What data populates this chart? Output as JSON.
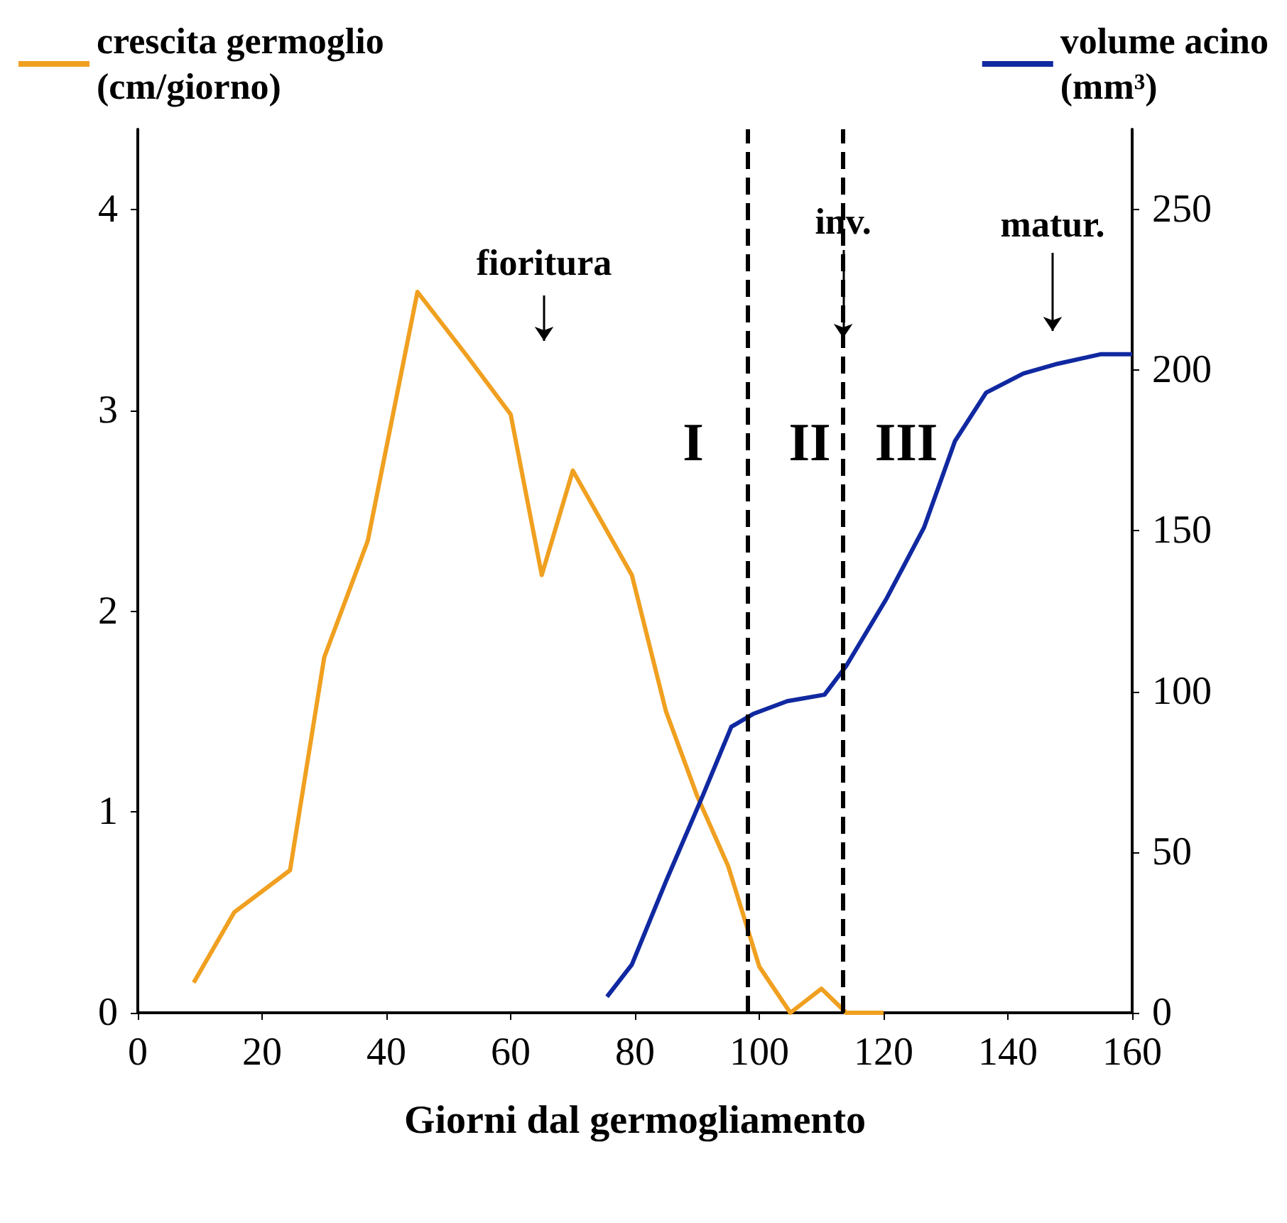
{
  "chart_data": {
    "type": "line",
    "xlabel": "Giorni dal germogliamento",
    "x": [
      9,
      15.5,
      24.5,
      30,
      37,
      45,
      53,
      60,
      65,
      70,
      79.5,
      85,
      90,
      95,
      100,
      105,
      110,
      114,
      120
    ],
    "series": [
      {
        "name": "crescita germoglio\n(cm/giorno)",
        "color": "#f0a020",
        "values": [
          0.15,
          0.5,
          0.71,
          1.77,
          2.35,
          3.59,
          3.27,
          2.98,
          2.18,
          2.7,
          2.18,
          1.5,
          1.08,
          0.73,
          0.23,
          0,
          0.12,
          0,
          0
        ]
      },
      {
        "name": "volume acino\n(mm³)",
        "color": "#1028a0",
        "axis": "y2",
        "x": [
          75.5,
          79.5,
          85,
          91,
          95.5,
          99,
          104.5,
          110.5,
          114,
          120.5,
          126.5,
          131.5,
          136.5,
          142.5,
          148,
          155,
          160
        ],
        "values": [
          5,
          15,
          41,
          68,
          89,
          93,
          97,
          99,
          108,
          129,
          151,
          178,
          193,
          199,
          202,
          205,
          205
        ]
      }
    ],
    "xlim": [
      0,
      160
    ],
    "xticks": [
      0,
      20,
      40,
      60,
      80,
      100,
      120,
      140,
      160
    ],
    "ylim": [
      0,
      4.4
    ],
    "yticks": [
      0,
      1,
      2,
      3,
      4
    ],
    "y2lim": [
      0,
      275
    ],
    "y2ticks": [
      0,
      50,
      100,
      150,
      200,
      250
    ],
    "ref_lines": [
      {
        "axis": "x",
        "value": 98,
        "line_style": "dashed",
        "color": "#000000"
      },
      {
        "axis": "x",
        "value": 113.5,
        "line_style": "dashed",
        "color": "#000000"
      }
    ],
    "annotations": [
      "fioritura",
      {
        "text": "inv.",
        "x": 113.5,
        "y": 3.36
      },
      "matur.",
      "I",
      "II",
      "III"
    ],
    "legend": "top",
    "grid": false,
    "marker": "none",
    "line_style": "solid"
  }
}
